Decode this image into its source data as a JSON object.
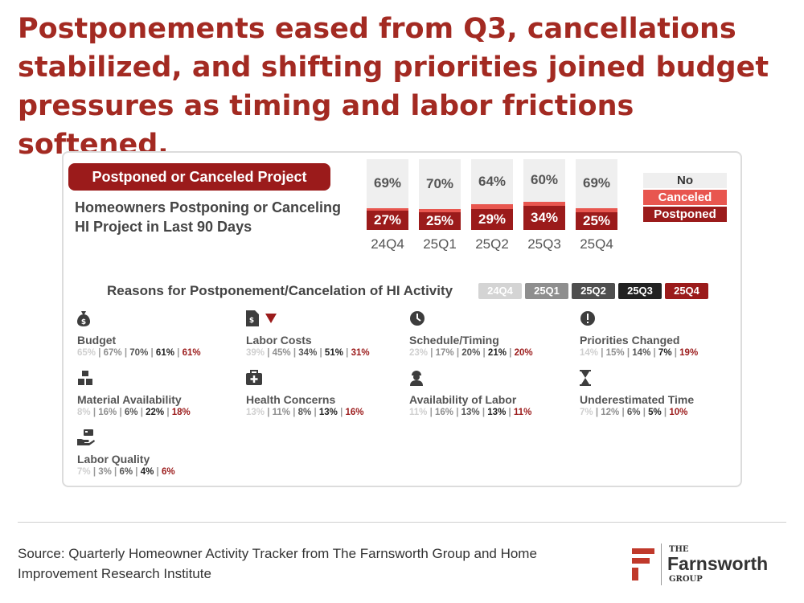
{
  "headline": "Postponements eased from Q3, cancellations stabilized, and shifting priorities joined budget pressures as timing and labor frictions softened.",
  "chart_title": "Postponed or Canceled Project",
  "chart_subtitle": "Homeowners Postponing or Canceling HI Project in Last 90 Days",
  "legend": {
    "no": "No",
    "canceled": "Canceled",
    "postponed": "Postponed"
  },
  "reasons_title": "Reasons for Postponement/Cancelation of HI Activity",
  "quarters": [
    "24Q4",
    "25Q1",
    "25Q2",
    "25Q3",
    "25Q4"
  ],
  "colors": {
    "accent": "#a32a22",
    "postponed": "#9b1b1b",
    "canceled": "#e8564f",
    "no": "#efefef"
  },
  "chart_data": {
    "type": "bar",
    "stacked": true,
    "categories": [
      "24Q4",
      "25Q1",
      "25Q2",
      "25Q3",
      "25Q4"
    ],
    "series": [
      {
        "name": "Postponed",
        "values": [
          27,
          25,
          29,
          34,
          25
        ]
      },
      {
        "name": "Canceled",
        "values": [
          4,
          5,
          7,
          6,
          6
        ]
      },
      {
        "name": "No",
        "values": [
          69,
          70,
          64,
          60,
          69
        ]
      }
    ],
    "ylim": [
      0,
      100
    ],
    "grid": false,
    "legend_position": "right"
  },
  "reasons": [
    {
      "name": "Budget",
      "icon": "money-bag-icon",
      "values": [
        "65%",
        "67%",
        "70%",
        "61%",
        "61%"
      ]
    },
    {
      "name": "Labor Costs",
      "icon": "invoice-icon",
      "trend": "down-triangle-icon",
      "values": [
        "39%",
        "45%",
        "34%",
        "51%",
        "31%"
      ]
    },
    {
      "name": "Schedule/Timing",
      "icon": "clock-icon",
      "values": [
        "23%",
        "17%",
        "20%",
        "21%",
        "20%"
      ]
    },
    {
      "name": "Priorities Changed",
      "icon": "exclamation-icon",
      "values": [
        "14%",
        "15%",
        "14%",
        "7%",
        "19%"
      ]
    },
    {
      "name": "Material Availability",
      "icon": "boxes-icon",
      "values": [
        "8%",
        "16%",
        "6%",
        "22%",
        "18%"
      ]
    },
    {
      "name": "Health Concerns",
      "icon": "medical-kit-icon",
      "values": [
        "13%",
        "11%",
        "8%",
        "13%",
        "16%"
      ]
    },
    {
      "name": "Availability of Labor",
      "icon": "worker-icon",
      "values": [
        "11%",
        "16%",
        "13%",
        "13%",
        "11%"
      ]
    },
    {
      "name": "Underestimated Time",
      "icon": "hourglass-icon",
      "values": [
        "7%",
        "12%",
        "6%",
        "5%",
        "10%"
      ]
    },
    {
      "name": "Labor Quality",
      "icon": "hand-card-icon",
      "values": [
        "7%",
        "3%",
        "6%",
        "4%",
        "6%"
      ]
    }
  ],
  "source": "Source: Quarterly Homeowner Activity Tracker from The Farnsworth Group and Home Improvement Research Institute",
  "logo": {
    "the": "THE",
    "name": "Farnsworth",
    "group": "GROUP"
  }
}
